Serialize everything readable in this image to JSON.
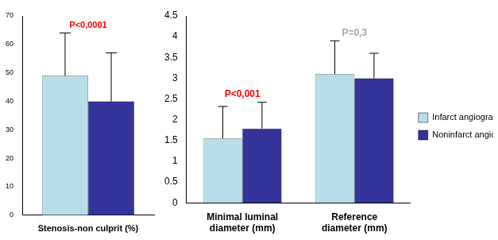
{
  "chart_data": [
    {
      "type": "bar",
      "categories": [
        "Stenosis-non culprit (%)"
      ],
      "series": [
        {
          "name": "Infarct angiogram",
          "color": "#b7dee8",
          "values": [
            49
          ],
          "errors": [
            15
          ]
        },
        {
          "name": "Noninfarct angiogram",
          "color": "#333399",
          "values": [
            40
          ],
          "errors": [
            17
          ]
        }
      ],
      "ylim": [
        0,
        70
      ],
      "yticks": [
        0,
        10,
        20,
        30,
        40,
        50,
        60,
        70
      ],
      "grid": false,
      "annotations": [
        {
          "text": "P<0,0001",
          "category": "Stenosis-non culprit (%)",
          "color": "#ff0000"
        }
      ]
    },
    {
      "type": "bar",
      "categories": [
        "Minimal luminal diameter (mm)",
        "Reference diameter (mm)"
      ],
      "series": [
        {
          "name": "Infarct angiogram",
          "color": "#b7dee8",
          "values": [
            1.55,
            3.1
          ],
          "errors": [
            0.77,
            0.8
          ]
        },
        {
          "name": "Noninfarct angiogram",
          "color": "#333399",
          "values": [
            1.79,
            3.0
          ],
          "errors": [
            0.63,
            0.6
          ]
        }
      ],
      "ylim": [
        0,
        4.5
      ],
      "yticks": [
        0,
        0.5,
        1,
        1.5,
        2,
        2.5,
        3,
        3.5,
        4,
        4.5
      ],
      "grid": false,
      "legend": "right",
      "annotations": [
        {
          "text": "P<0,001",
          "category": "Minimal luminal diameter (mm)",
          "color": "#ff0000"
        },
        {
          "text": "P=0,3",
          "category": "Reference diameter (mm)",
          "color": "#a6a6a6"
        }
      ]
    }
  ]
}
